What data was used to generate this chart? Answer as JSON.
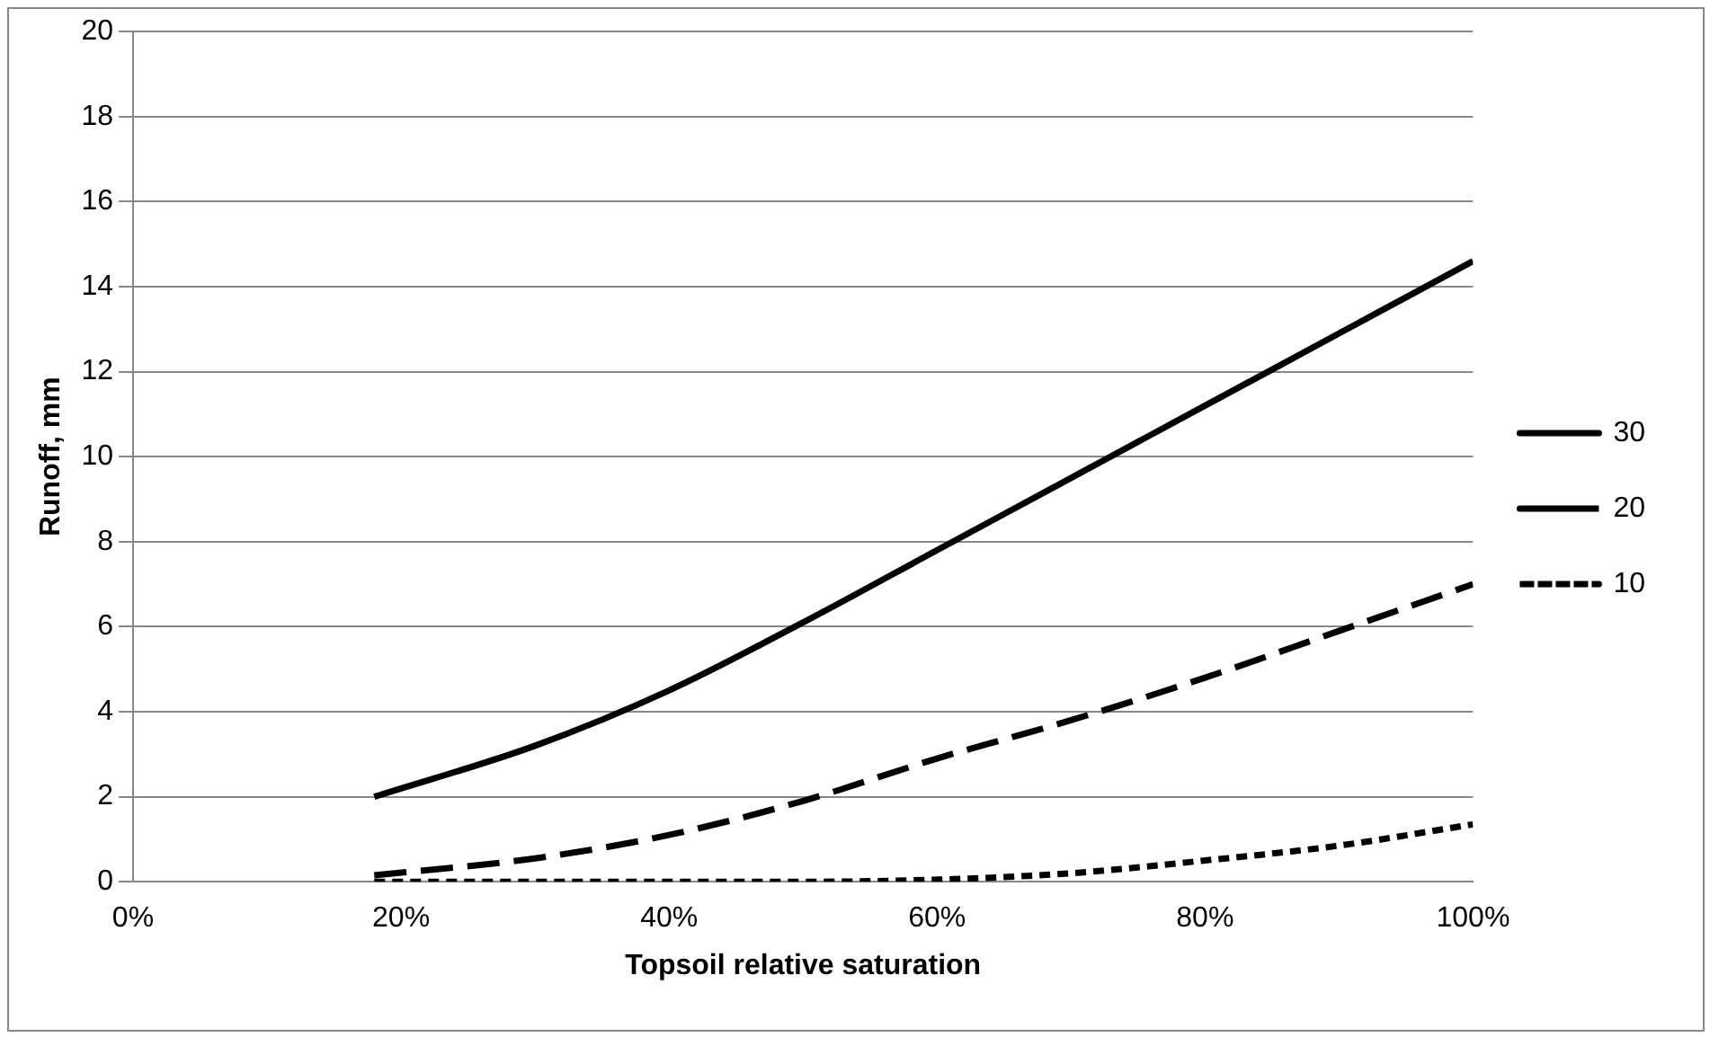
{
  "chart_data": {
    "type": "line",
    "xlabel": "Topsoil relative saturation",
    "ylabel": "Runoff, mm",
    "x": [
      18,
      30,
      40,
      50,
      60,
      70,
      80,
      90,
      100
    ],
    "series": [
      {
        "name": "30",
        "color": "#000000",
        "line_style": "solid",
        "values": [
          2,
          3.2,
          4.5,
          6.1,
          7.8,
          9.5,
          11.2,
          12.9,
          14.6
        ]
      },
      {
        "name": "20",
        "color": "#000000",
        "line_style": "dashed",
        "values": [
          0.15,
          0.55,
          1.1,
          1.9,
          2.9,
          3.8,
          4.8,
          5.9,
          7
        ]
      },
      {
        "name": "10",
        "color": "#000000",
        "line_style": "dotted",
        "values": [
          0,
          0,
          0,
          0,
          0.05,
          0.2,
          0.5,
          0.85,
          1.35
        ]
      }
    ],
    "xlim": [
      0,
      100
    ],
    "xticks": [
      {
        "value": 0,
        "label": "0%"
      },
      {
        "value": 20,
        "label": "20%"
      },
      {
        "value": 40,
        "label": "40%"
      },
      {
        "value": 60,
        "label": "60%"
      },
      {
        "value": 80,
        "label": "80%"
      },
      {
        "value": 100,
        "label": "100%"
      }
    ],
    "ylim": [
      0,
      20
    ],
    "yticks": [
      0,
      2,
      4,
      6,
      8,
      10,
      12,
      14,
      16,
      18,
      20
    ],
    "grid": "y",
    "legend": "right",
    "marker": "none"
  }
}
